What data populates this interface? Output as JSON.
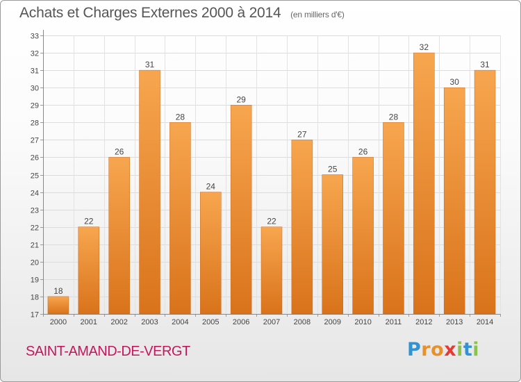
{
  "chart_data": {
    "type": "bar",
    "title": "Achats et Charges Externes 2000 à 2014",
    "subtitle": "(en milliers d'€)",
    "categories": [
      "2000",
      "2001",
      "2002",
      "2003",
      "2004",
      "2005",
      "2006",
      "2007",
      "2008",
      "2009",
      "2010",
      "2011",
      "2012",
      "2013",
      "2014"
    ],
    "values": [
      18,
      22,
      26,
      31,
      28,
      24,
      29,
      22,
      27,
      25,
      26,
      28,
      32,
      30,
      31
    ],
    "ylim": [
      17,
      33
    ],
    "yticks": [
      17,
      18,
      19,
      20,
      21,
      22,
      23,
      24,
      25,
      26,
      27,
      28,
      29,
      30,
      31,
      32,
      33
    ],
    "grid": true,
    "bar_color_light": "#f7a64f",
    "bar_color_dark": "#d9731b"
  },
  "location": "SAINT-AMAND-DE-VERGT",
  "logo": {
    "text": "Proxiti",
    "letters": [
      {
        "char": "P",
        "color": "#2f93d4"
      },
      {
        "char": "r",
        "color": "#e8902a"
      },
      {
        "char": "o",
        "color": "#e8902a"
      },
      {
        "char": "x",
        "color": "#e53935"
      },
      {
        "char": "i",
        "color": "#8bc34a"
      },
      {
        "char": "t",
        "color": "#2f93d4"
      },
      {
        "char": "i",
        "color": "#8bc34a"
      }
    ]
  }
}
